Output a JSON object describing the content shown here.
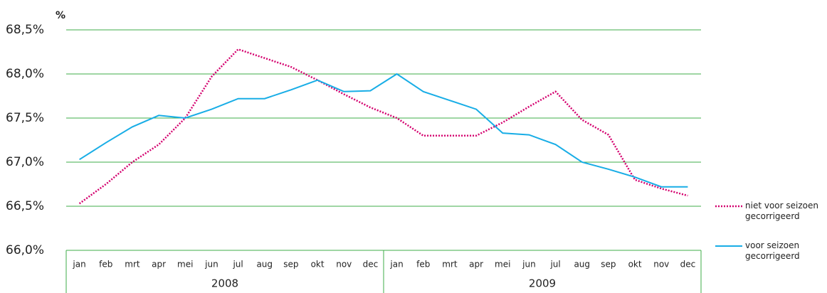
{
  "chart_data": {
    "type": "line",
    "y_unit": "%",
    "categories": [
      "jan",
      "feb",
      "mrt",
      "apr",
      "mei",
      "jun",
      "jul",
      "aug",
      "sep",
      "okt",
      "nov",
      "dec",
      "jan",
      "feb",
      "mrt",
      "apr",
      "mei",
      "jun",
      "jul",
      "aug",
      "sep",
      "okt",
      "nov",
      "dec"
    ],
    "years": [
      "2008",
      "2009"
    ],
    "series": [
      {
        "name": "niet voor seizoen gecorrigeerd",
        "color": "#d4006e",
        "dash": "dotted",
        "values": [
          66.53,
          66.75,
          67.0,
          67.2,
          67.5,
          67.97,
          68.28,
          68.18,
          68.08,
          67.93,
          67.77,
          67.62,
          67.5,
          67.3,
          67.3,
          67.3,
          67.45,
          67.63,
          67.8,
          67.48,
          67.31,
          66.8,
          66.7,
          66.62
        ]
      },
      {
        "name": "voor seizoen gecorrigeerd",
        "color": "#18ade6",
        "dash": "solid",
        "values": [
          67.03,
          67.22,
          67.4,
          67.53,
          67.5,
          67.6,
          67.72,
          67.72,
          67.82,
          67.93,
          67.8,
          67.81,
          68.0,
          67.8,
          67.7,
          67.6,
          67.33,
          67.31,
          67.2,
          67.0,
          66.92,
          66.83,
          66.72,
          66.72
        ]
      }
    ],
    "ylim": [
      66.0,
      68.5
    ],
    "yticks": [
      {
        "value": 66.0,
        "label": "66,0%"
      },
      {
        "value": 66.5,
        "label": "66,5%"
      },
      {
        "value": 67.0,
        "label": "67,0%"
      },
      {
        "value": 67.5,
        "label": "67,5%"
      },
      {
        "value": 68.0,
        "label": "68,0%"
      },
      {
        "value": 68.5,
        "label": "68,5%"
      }
    ],
    "grid": true,
    "grid_color": "#3fae49"
  }
}
